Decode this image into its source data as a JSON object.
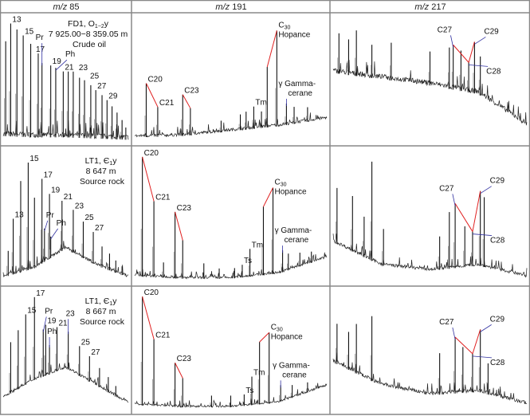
{
  "chart_data": {
    "type": "line",
    "columns": [
      {
        "header_italic": "m/z",
        "header_value": "85"
      },
      {
        "header_italic": "m/z",
        "header_value": "191"
      },
      {
        "header_italic": "m/z",
        "header_value": "217"
      }
    ],
    "rows": [
      {
        "sample": {
          "well": "FD1, O",
          "sub": "1−2",
          "suffix": "y",
          "depth": "7 925.00−8 359.05 m",
          "type": "Crude oil"
        }
      },
      {
        "sample": {
          "well": "LT1, Є",
          "sub": "1",
          "suffix": "y",
          "depth": "8 647 m",
          "type": "Source rock"
        }
      },
      {
        "sample": {
          "well": "LT1, Є",
          "sub": "1",
          "suffix": "y",
          "depth": "8 667 m",
          "type": "Source rock"
        }
      }
    ],
    "panels": [
      {
        "row": 0,
        "col": 0,
        "baseline": [
          4,
          3,
          3,
          2,
          1
        ],
        "grass": 14,
        "peaks": [
          [
            0.02,
            80
          ],
          [
            0.06,
            95,
            "13"
          ],
          [
            0.11,
            90
          ],
          [
            0.16,
            85,
            "15"
          ],
          [
            0.22,
            78
          ],
          [
            0.28,
            70,
            "17"
          ],
          [
            0.31,
            62,
            "Pr"
          ],
          [
            0.38,
            60,
            "19"
          ],
          [
            0.42,
            58,
            "Ph"
          ],
          [
            0.48,
            55,
            "21"
          ],
          [
            0.52,
            55
          ],
          [
            0.56,
            55,
            "23"
          ],
          [
            0.61,
            50
          ],
          [
            0.65,
            48,
            "25"
          ],
          [
            0.7,
            44
          ],
          [
            0.74,
            40,
            "27"
          ],
          [
            0.79,
            36
          ],
          [
            0.83,
            32,
            "29"
          ],
          [
            0.87,
            27
          ],
          [
            0.91,
            22
          ],
          [
            0.95,
            16
          ],
          [
            0.98,
            10
          ]
        ]
      },
      {
        "row": 0,
        "col": 1,
        "baseline": [
          3,
          4,
          8,
          12,
          18
        ],
        "grass": 8,
        "peaks": [
          [
            0.06,
            45,
            "C20"
          ],
          [
            0.12,
            25,
            "C21"
          ],
          [
            0.25,
            35,
            "C23"
          ],
          [
            0.29,
            23
          ],
          [
            0.45,
            10
          ],
          [
            0.55,
            14
          ],
          [
            0.58,
            16
          ],
          [
            0.62,
            20,
            "Tm"
          ],
          [
            0.66,
            15
          ],
          [
            0.69,
            55
          ],
          [
            0.74,
            88,
            "C30 Hopance"
          ],
          [
            0.79,
            20,
            "γ Gamma-cerane"
          ],
          [
            0.83,
            16
          ],
          [
            0.9,
            14
          ]
        ]
      },
      {
        "row": 0,
        "col": 2,
        "baseline": [
          55,
          50,
          45,
          38,
          12
        ],
        "grass": 14,
        "peaks": [
          [
            0.03,
            72
          ],
          [
            0.08,
            62
          ],
          [
            0.12,
            78
          ],
          [
            0.2,
            55
          ],
          [
            0.3,
            60
          ],
          [
            0.5,
            50
          ],
          [
            0.6,
            58
          ],
          [
            0.62,
            62,
            "C27"
          ],
          [
            0.66,
            55
          ],
          [
            0.7,
            40,
            "C28"
          ],
          [
            0.73,
            68,
            "C29"
          ],
          [
            0.76,
            50
          ]
        ]
      },
      {
        "row": 1,
        "col": 0,
        "baseline": [
          3,
          10,
          25,
          12,
          3
        ],
        "grass": 8,
        "peaks": [
          [
            0.04,
            20
          ],
          [
            0.08,
            45,
            "13"
          ],
          [
            0.14,
            75
          ],
          [
            0.2,
            90,
            "15"
          ],
          [
            0.25,
            60
          ],
          [
            0.31,
            75,
            "17"
          ],
          [
            0.33,
            30,
            "Pr"
          ],
          [
            0.37,
            60,
            "19"
          ],
          [
            0.38,
            20,
            "Ph"
          ],
          [
            0.47,
            50,
            "21"
          ],
          [
            0.56,
            42,
            "23"
          ],
          [
            0.64,
            34,
            "25"
          ],
          [
            0.72,
            28,
            "27"
          ],
          [
            0.79,
            18
          ],
          [
            0.85,
            14
          ],
          [
            0.9,
            10
          ],
          [
            0.95,
            7
          ]
        ]
      },
      {
        "row": 1,
        "col": 1,
        "baseline": [
          4,
          2,
          2,
          6,
          18
        ],
        "grass": 6,
        "peaks": [
          [
            0.04,
            95,
            "C20"
          ],
          [
            0.1,
            60,
            "C21"
          ],
          [
            0.15,
            12
          ],
          [
            0.21,
            52,
            "C23"
          ],
          [
            0.25,
            30
          ],
          [
            0.36,
            12
          ],
          [
            0.44,
            8
          ],
          [
            0.52,
            8
          ],
          [
            0.56,
            10,
            "Ts"
          ],
          [
            0.6,
            22,
            "Tm"
          ],
          [
            0.67,
            55
          ],
          [
            0.72,
            70,
            "C30 Hopance"
          ],
          [
            0.77,
            18,
            "γ Gamma-cerane"
          ],
          [
            0.8,
            14
          ],
          [
            0.86,
            12
          ],
          [
            0.92,
            10
          ]
        ]
      },
      {
        "row": 1,
        "col": 2,
        "baseline": [
          30,
          12,
          8,
          12,
          3
        ],
        "grass": 8,
        "peaks": [
          [
            0.02,
            60
          ],
          [
            0.1,
            55
          ],
          [
            0.16,
            38
          ],
          [
            0.2,
            90
          ],
          [
            0.26,
            32
          ],
          [
            0.55,
            28
          ],
          [
            0.6,
            48
          ],
          [
            0.63,
            55,
            "C27"
          ],
          [
            0.68,
            35
          ],
          [
            0.72,
            30,
            "C28"
          ],
          [
            0.76,
            65,
            "C29"
          ],
          [
            0.78,
            60
          ]
        ]
      },
      {
        "row": 2,
        "col": 0,
        "baseline": [
          10,
          25,
          35,
          20,
          5
        ],
        "grass": 8,
        "peaks": [
          [
            0.06,
            50
          ],
          [
            0.12,
            60
          ],
          [
            0.18,
            75,
            "15"
          ],
          [
            0.25,
            93,
            "17"
          ],
          [
            0.32,
            55,
            "Pr"
          ],
          [
            0.34,
            60,
            "19"
          ],
          [
            0.37,
            35,
            "Ph"
          ],
          [
            0.43,
            55,
            "21"
          ],
          [
            0.52,
            48,
            "23"
          ],
          [
            0.61,
            35,
            "25"
          ],
          [
            0.69,
            28,
            "27"
          ],
          [
            0.77,
            20
          ],
          [
            0.84,
            15
          ],
          [
            0.9,
            10
          ]
        ]
      },
      {
        "row": 2,
        "col": 1,
        "baseline": [
          4,
          2,
          2,
          6,
          20
        ],
        "grass": 6,
        "peaks": [
          [
            0.04,
            95,
            "C20"
          ],
          [
            0.1,
            58,
            "C21"
          ],
          [
            0.21,
            38,
            "C23"
          ],
          [
            0.25,
            25
          ],
          [
            0.4,
            10
          ],
          [
            0.5,
            10
          ],
          [
            0.57,
            10,
            "Ts"
          ],
          [
            0.61,
            25,
            "Tm"
          ],
          [
            0.65,
            55
          ],
          [
            0.7,
            63,
            "C30 Hopance"
          ],
          [
            0.76,
            15,
            "γ Gamma-cerane"
          ],
          [
            0.82,
            12
          ],
          [
            0.9,
            10
          ]
        ]
      },
      {
        "row": 2,
        "col": 2,
        "baseline": [
          40,
          20,
          12,
          15,
          4
        ],
        "grass": 10,
        "peaks": [
          [
            0.02,
            55
          ],
          [
            0.08,
            48
          ],
          [
            0.12,
            60
          ],
          [
            0.2,
            72
          ],
          [
            0.55,
            40
          ],
          [
            0.63,
            55,
            "C27"
          ],
          [
            0.67,
            45
          ],
          [
            0.72,
            38,
            "C28"
          ],
          [
            0.76,
            62,
            "C29"
          ],
          [
            0.8,
            30
          ]
        ]
      }
    ]
  }
}
